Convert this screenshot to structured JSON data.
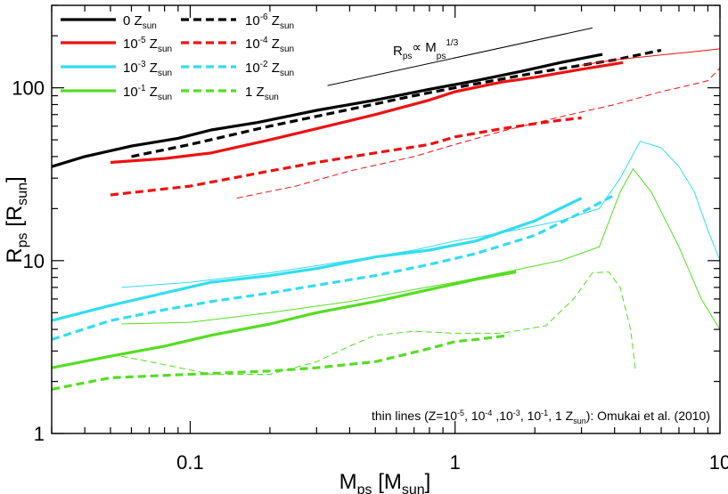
{
  "chart_data": {
    "type": "line",
    "title": "",
    "xlabel": "M_ps [M_sun]",
    "ylabel": "R_ps [R_sun]",
    "xlabel_parts": {
      "main": "M",
      "sub": "ps",
      "rest": " [M",
      "sub2": "sun",
      "end": "]"
    },
    "ylabel_parts": {
      "main": "R",
      "sub": "ps",
      "rest": " [R",
      "sub2": "sun",
      "end": "]"
    },
    "xscale": "log",
    "yscale": "log",
    "xlim": [
      0.03,
      10
    ],
    "ylim": [
      1,
      300
    ],
    "x_ticks": [
      {
        "value": 0.1,
        "label": "0.1"
      },
      {
        "value": 1,
        "label": "1"
      },
      {
        "value": 10,
        "label": "10"
      }
    ],
    "y_ticks": [
      {
        "value": 1,
        "label": "1"
      },
      {
        "value": 10,
        "label": "10"
      },
      {
        "value": 100,
        "label": "100"
      }
    ],
    "grid": false,
    "legend_position": "top-left",
    "annotation": "thin lines (Z=10-5, 10-4 ,10-3, 10-1, 1 Zsun): Omukai et al. (2010)",
    "annotation_parts": [
      "thin lines (Z=10",
      "-5",
      ", 10",
      "-4",
      " ,10",
      "-3",
      ", 10",
      "-1",
      ", 1 Z",
      "sun",
      "): Omukai et al. (2010)"
    ],
    "reference_line": {
      "label": "Rps∝ Mps1/3",
      "label_parts": [
        "R",
        "ps",
        "∝ M",
        "ps",
        "1/3"
      ],
      "x": [
        0.33,
        3.3
      ],
      "y": [
        103,
        222
      ]
    },
    "series": [
      {
        "name": "0 Zsun",
        "z_prefix": "0",
        "z_exp": "",
        "color": "#000000",
        "dash": "solid",
        "width": "thick",
        "x": [
          0.03,
          0.04,
          0.06,
          0.09,
          0.12,
          0.18,
          0.3,
          0.5,
          0.8,
          1.2,
          1.8,
          2.5,
          3.6
        ],
        "y": [
          35,
          40,
          46,
          51,
          57,
          63,
          74,
          85,
          98,
          110,
          125,
          140,
          156
        ]
      },
      {
        "name": "10-6 Zsun",
        "z_prefix": "10",
        "z_exp": "-6",
        "color": "#000000",
        "dash": "dashed",
        "width": "thick",
        "x": [
          0.06,
          0.1,
          0.2,
          0.4,
          0.7,
          1.0,
          2.0,
          3.0,
          4.0,
          6.0
        ],
        "y": [
          40,
          47,
          60,
          75,
          90,
          100,
          122,
          135,
          145,
          165
        ]
      },
      {
        "name": "10-5 Zsun",
        "z_prefix": "10",
        "z_exp": "-5",
        "color": "#ee1111",
        "dash": "solid",
        "width": "thick",
        "x": [
          0.05,
          0.08,
          0.12,
          0.2,
          0.3,
          0.5,
          0.8,
          1.0,
          1.5,
          2.0,
          3.0,
          4.3
        ],
        "y": [
          37,
          39,
          42,
          50,
          58,
          70,
          85,
          95,
          108,
          115,
          128,
          140
        ]
      },
      {
        "name": "10-4 Zsun",
        "z_prefix": "10",
        "z_exp": "-4",
        "color": "#ee1111",
        "dash": "dashed",
        "width": "thick",
        "x": [
          0.05,
          0.1,
          0.2,
          0.3,
          0.5,
          0.8,
          1.0,
          1.5,
          2.0,
          2.5,
          3.0
        ],
        "y": [
          24,
          27,
          33,
          37,
          42,
          47,
          52,
          58,
          62,
          65,
          67
        ]
      },
      {
        "name": "10-3 Zsun",
        "z_prefix": "10",
        "z_exp": "-3",
        "color": "#33ddee",
        "dash": "solid",
        "width": "thick",
        "x": [
          0.03,
          0.05,
          0.08,
          0.12,
          0.2,
          0.3,
          0.5,
          0.8,
          1.2,
          2.0,
          3.0
        ],
        "y": [
          4.5,
          5.5,
          6.5,
          7.5,
          8.2,
          9,
          10.5,
          11.5,
          13,
          17,
          23
        ]
      },
      {
        "name": "10-2 Zsun",
        "z_prefix": "10",
        "z_exp": "-2",
        "color": "#33ddee",
        "dash": "dashed",
        "width": "thick",
        "x": [
          0.03,
          0.05,
          0.08,
          0.12,
          0.2,
          0.3,
          0.5,
          0.8,
          1.2,
          2.0,
          3.0,
          4.0
        ],
        "y": [
          3.5,
          4.5,
          5.2,
          5.8,
          6.5,
          7.2,
          8.2,
          9.5,
          11,
          14,
          19,
          24
        ]
      },
      {
        "name": "10-1 Zsun",
        "z_prefix": "10",
        "z_exp": "-1",
        "color": "#55dd22",
        "dash": "solid",
        "width": "thick",
        "x": [
          0.03,
          0.05,
          0.08,
          0.12,
          0.2,
          0.3,
          0.5,
          0.8,
          1.2,
          1.7
        ],
        "y": [
          2.4,
          2.8,
          3.2,
          3.7,
          4.3,
          5,
          5.8,
          6.8,
          7.8,
          8.6
        ]
      },
      {
        "name": "1 Zsun",
        "z_prefix": "1",
        "z_exp": "",
        "color": "#55dd22",
        "dash": "dashed",
        "width": "thick",
        "x": [
          0.03,
          0.05,
          0.1,
          0.2,
          0.3,
          0.5,
          0.8,
          1.0,
          1.2,
          1.6
        ],
        "y": [
          1.8,
          2.1,
          2.2,
          2.3,
          2.4,
          2.6,
          3.1,
          3.4,
          3.5,
          3.7
        ]
      },
      {
        "name": "",
        "color": "#ee1111",
        "dash": "solid",
        "width": "thin",
        "x": [
          3.0,
          4.0,
          6.0,
          8.0,
          10.0
        ],
        "y": [
          135,
          145,
          155,
          162,
          168
        ]
      },
      {
        "name": "",
        "color": "#ee1111",
        "dash": "dashed",
        "width": "thin",
        "x": [
          0.15,
          0.25,
          0.4,
          0.7,
          1.0,
          1.5,
          2.5,
          4.0,
          6.0,
          8.0,
          9.0,
          10.0
        ],
        "y": [
          23,
          27,
          33,
          40,
          47,
          56,
          68,
          80,
          95,
          105,
          110,
          130
        ]
      },
      {
        "name": "",
        "color": "#33ddee",
        "dash": "solid",
        "width": "thin",
        "x": [
          0.055,
          0.1,
          0.2,
          0.4,
          0.7,
          1.0,
          1.5,
          2.5,
          3.5,
          4.2,
          5.0,
          6.0,
          7.0,
          8.0,
          9.0,
          10.0
        ],
        "y": [
          7,
          7.5,
          8.5,
          10,
          11.5,
          13,
          14.5,
          17,
          20,
          30,
          49,
          45,
          35,
          25,
          15,
          10
        ]
      },
      {
        "name": "",
        "color": "#55dd22",
        "dash": "solid",
        "width": "thin",
        "x": [
          0.055,
          0.1,
          0.2,
          0.4,
          0.7,
          1.0,
          1.5,
          2.5,
          3.5,
          4.2,
          4.7,
          5.5,
          7.0,
          8.5,
          10.0
        ],
        "y": [
          4.3,
          4.4,
          5,
          5.8,
          6.8,
          7.5,
          8.5,
          10,
          12,
          25,
          34,
          25,
          12,
          6,
          4
        ]
      },
      {
        "name": "",
        "color": "#55dd22",
        "dash": "dashed",
        "width": "thin",
        "x": [
          0.055,
          0.08,
          0.12,
          0.2,
          0.3,
          0.4,
          0.5,
          0.7,
          1.0,
          1.5,
          2.2,
          2.8,
          3.3,
          3.8,
          4.2,
          4.6,
          4.8
        ],
        "y": [
          2.8,
          2.5,
          2.2,
          2.2,
          2.6,
          3.2,
          3.7,
          3.9,
          3.8,
          3.8,
          4.2,
          6,
          8.5,
          8.6,
          7,
          4,
          2.3
        ]
      }
    ]
  }
}
